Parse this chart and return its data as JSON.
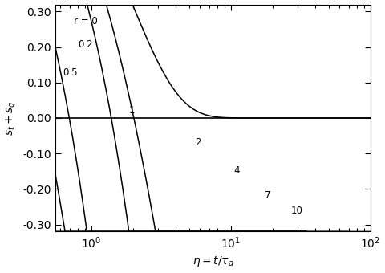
{
  "title": "",
  "xlabel": "$\\eta = t / \\tau_a$",
  "ylabel": "$s_t + s_q$",
  "ylim": [
    -0.32,
    0.32
  ],
  "yticks": [
    -0.3,
    -0.2,
    -0.1,
    0.0,
    0.1,
    0.2,
    0.3
  ],
  "r_values": [
    0,
    0.2,
    0.5,
    1,
    2,
    4,
    7,
    10
  ],
  "r_labels": [
    "r = 0",
    "0.2",
    "0.5",
    "1",
    "2",
    "4",
    "7",
    "10"
  ],
  "line_color": "#000000",
  "background_color": "#ffffff",
  "figsize": [
    4.8,
    3.4
  ],
  "dpi": 100
}
